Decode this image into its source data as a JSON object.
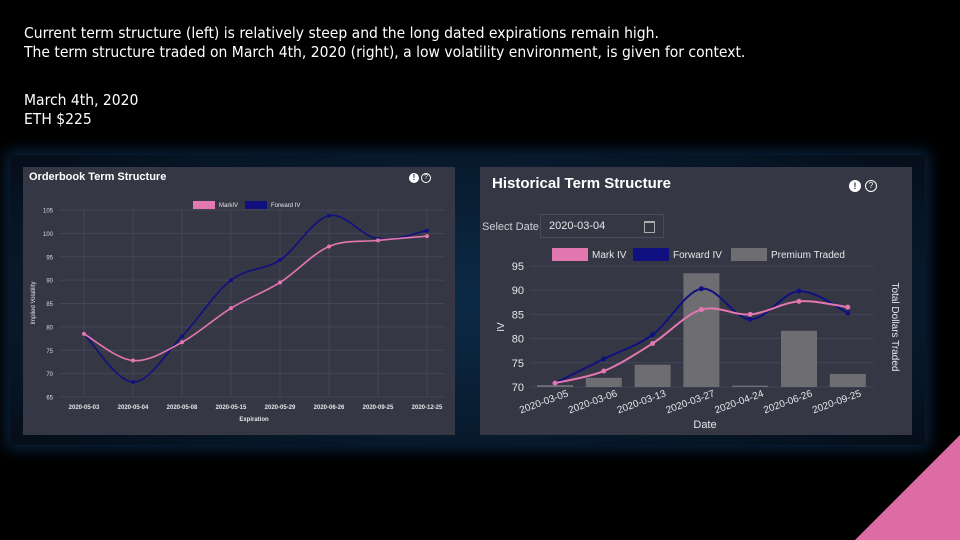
{
  "captions": {
    "line1": "Current term structure (left) is relatively steep and the long dated expirations remain high.",
    "line2": "The term structure traded on March 4th, 2020 (right), a low volatility environment, is given for context.",
    "line3": "March 4th, 2020",
    "line4": "ETH $225"
  },
  "left_panel": {
    "title": "Orderbook Term Structure",
    "info_icon": "!",
    "help_icon": "?"
  },
  "right_panel": {
    "title": "Historical Term Structure",
    "info_icon": "!",
    "help_icon": "?",
    "select_label": "Select Date",
    "select_value": "2020-03-04"
  },
  "colors": {
    "mark": "#e377b0",
    "forward": "#101080",
    "premium": "#6e6e72",
    "panel": "#353744",
    "accent": "#dd6ca5"
  },
  "chart_data": [
    {
      "type": "line",
      "title": "",
      "xlabel": "Expiration",
      "ylabel": "Implied Volatility",
      "categories": [
        "2020-05-03",
        "2020-05-04",
        "2020-05-08",
        "2020-05-15",
        "2020-05-29",
        "2020-06-26",
        "2020-09-25",
        "2020-12-25"
      ],
      "series": [
        {
          "name": "MarkIV",
          "values": [
            78.5,
            72.8,
            76.7,
            84.0,
            89.5,
            97.2,
            98.5,
            99.4
          ]
        },
        {
          "name": "Forward IV",
          "values": [
            78.5,
            68.2,
            78.0,
            90.0,
            94.3,
            103.8,
            98.8,
            100.6
          ]
        }
      ],
      "ylim": [
        65,
        105
      ],
      "yticks": [
        65,
        70,
        75,
        80,
        85,
        90,
        95,
        100,
        105
      ],
      "grid": true,
      "legend": "top-center"
    },
    {
      "type": "bar+line",
      "title": "",
      "xlabel": "Date",
      "ylabel": "IV",
      "y2label": "Total Dollars Traded",
      "categories": [
        "2020-03-05",
        "2020-03-06",
        "2020-03-13",
        "2020-03-27",
        "2020-04-24",
        "2020-06-26",
        "2020-09-25"
      ],
      "series": [
        {
          "name": "Mark IV",
          "kind": "line",
          "values": [
            70.8,
            73.3,
            79.0,
            86.0,
            85.0,
            87.7,
            86.5
          ]
        },
        {
          "name": "Forward IV",
          "kind": "line",
          "values": [
            70.8,
            75.8,
            80.8,
            90.3,
            84.0,
            89.8,
            85.3
          ]
        },
        {
          "name": "Premium Traded",
          "kind": "bar",
          "values": [
            70.4,
            71.9,
            74.6,
            93.5,
            70.3,
            81.6,
            72.7
          ]
        }
      ],
      "ylim": [
        70,
        95
      ],
      "yticks": [
        70,
        75,
        80,
        85,
        90,
        95
      ],
      "grid": true,
      "legend": "top-center"
    }
  ]
}
